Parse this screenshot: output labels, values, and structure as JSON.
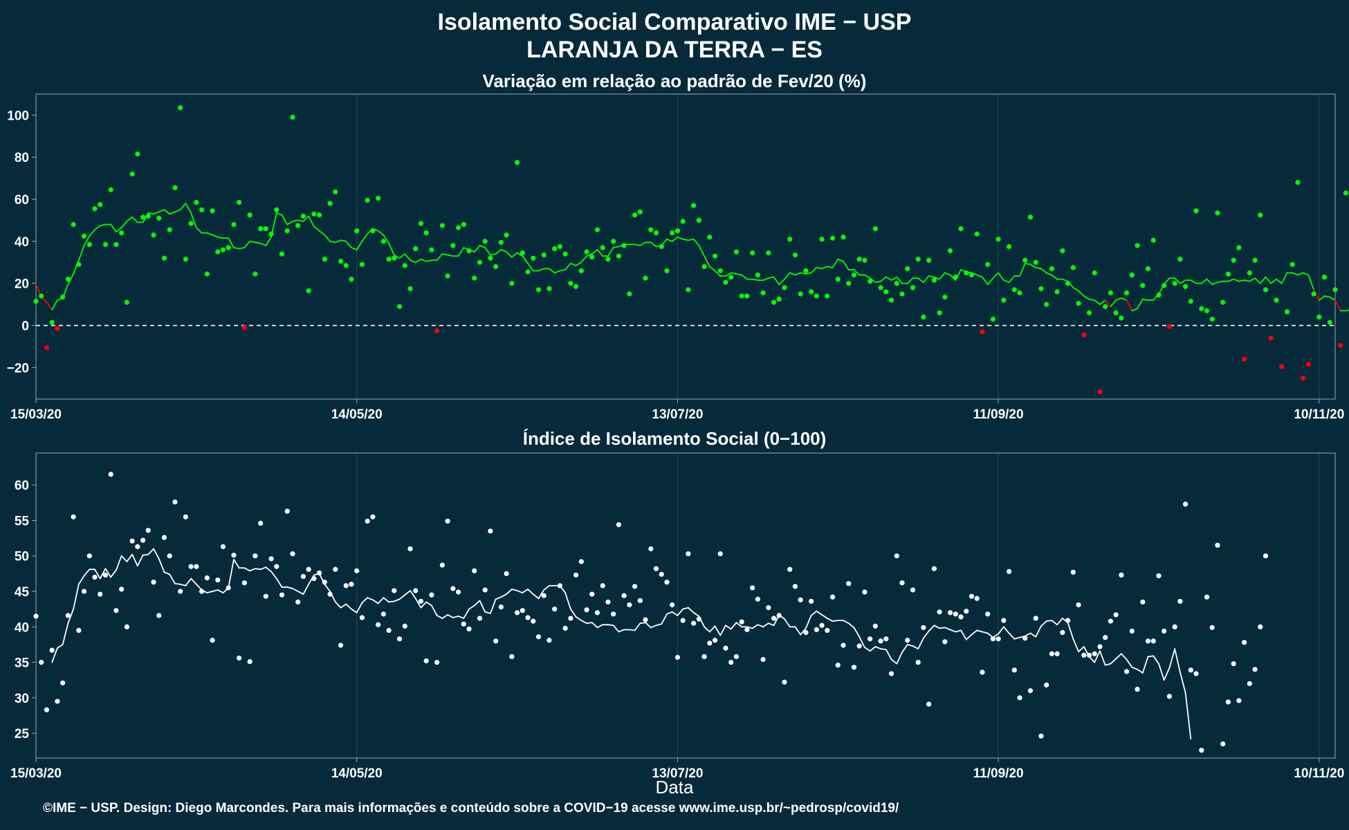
{
  "header": {
    "title_line1": "Isolamento Social Comparativo IME − USP",
    "title_line2": "LARANJA DA TERRA − ES"
  },
  "footer": {
    "xlabel": "Data",
    "credit": "©IME − USP. Design: Diego Marcondes. Para mais informações e conteúdo sobre a COVID−19 acesse www.ime.usp.br/~pedrosp/covid19/"
  },
  "colors": {
    "background": "#062a3a",
    "positive": "#00ff00",
    "negative": "#ff0000",
    "index": "#ffffff",
    "axis": "#9aa9b1"
  },
  "chart_data": [
    {
      "type": "scatter",
      "title": "Variação em relação ao padrão de Fev/20 (%)",
      "x_start": "15/03/20",
      "x_ticks": [
        "15/03/20",
        "14/05/20",
        "13/07/20",
        "11/09/20",
        "10/11/20"
      ],
      "x_tick_days": [
        0,
        60,
        120,
        180,
        240
      ],
      "x_range_days": [
        0,
        243
      ],
      "ylim": [
        -35,
        110
      ],
      "y_ticks": [
        -20,
        0,
        20,
        40,
        60,
        80,
        100
      ],
      "reference_line": 0,
      "series": [
        {
          "role": "daily points (green ≥ 0, red < 0)",
          "values": [
            11.5,
            14,
            -10.5,
            1.5,
            -1.5,
            13.5,
            22,
            48,
            29,
            42.5,
            38.5,
            55.5,
            57.5,
            38.5,
            64.5,
            38.5,
            44,
            11,
            72,
            81.5,
            51.5,
            52,
            43,
            51,
            32,
            45.5,
            65.5,
            103.5,
            31.5,
            48.5,
            58.5,
            55,
            24.5,
            54.5,
            35,
            36,
            37,
            48,
            58.5,
            -1,
            52.5,
            24.5,
            46,
            46,
            43.5,
            55,
            34,
            45,
            99,
            47.5,
            52,
            16.5,
            53,
            52.5,
            31.5,
            58,
            63.5,
            30.5,
            28.5,
            22,
            45,
            29,
            59.5,
            45,
            60.5,
            40,
            31.5,
            32,
            9,
            28.5,
            17.5,
            36.5,
            48.5,
            44,
            36,
            -2.5,
            47.5,
            23.5,
            38,
            46.5,
            48,
            35.5,
            22.5,
            30,
            40,
            32,
            28,
            39.5,
            43,
            20,
            77.5,
            34.5,
            25.5,
            32,
            17,
            33.5,
            17.5,
            36.5,
            37.5,
            34,
            20,
            18.5,
            26,
            35,
            32.5,
            45.5,
            37,
            31.5,
            40,
            33,
            38,
            15,
            52.5,
            54,
            22.5,
            45.5,
            44,
            37.5,
            26,
            44,
            45,
            49.5,
            17,
            57,
            50,
            28,
            42,
            33,
            26,
            20.5,
            23,
            35,
            14,
            14,
            34.5,
            24,
            15.5,
            34.5,
            11,
            12.5,
            18,
            41,
            33.5,
            15,
            26,
            16,
            14,
            41,
            14,
            41.5,
            22,
            42,
            20,
            24,
            31.5,
            31,
            21,
            46,
            18,
            16,
            12,
            20,
            15,
            27,
            18,
            31.5,
            4,
            31,
            21.5,
            6,
            13.5,
            35.5,
            23,
            46,
            25,
            24,
            43.5,
            -3,
            29,
            3,
            41,
            12,
            37.5,
            17,
            15.5,
            31,
            51.5,
            30,
            17.5,
            10,
            27,
            16,
            35.5,
            20,
            27.5,
            10.5,
            -4.5,
            6,
            25,
            -31.5,
            9,
            15.5,
            6,
            3.5,
            15.5,
            24,
            38,
            19,
            27,
            40.5,
            14.5,
            19,
            -0.5,
            20,
            31.5,
            18.5,
            11.5,
            54.5,
            8,
            7,
            3,
            53.5,
            11,
            24.5,
            31,
            37,
            -16,
            25,
            31,
            52.5,
            17,
            -6,
            12,
            -19.5,
            6.5,
            29,
            68,
            -25,
            -18.5,
            15,
            4,
            23,
            1.5,
            17,
            -9.5,
            63
          ]
        },
        {
          "role": "moving average",
          "start_day": 0,
          "values": [
            19.5,
            13.5,
            11,
            7.5,
            12,
            13,
            19.5,
            24.5,
            31,
            38,
            42.5,
            45.5,
            47.5,
            48,
            48,
            44.5,
            46.5,
            49.5,
            51.5,
            49,
            49,
            53.5,
            53,
            54,
            55,
            53,
            54,
            55,
            58,
            53.5,
            46.5,
            44,
            44,
            43,
            42,
            41.5,
            41.5,
            37,
            36.5,
            37,
            40,
            39.5,
            39,
            38,
            42,
            53.5,
            52.5,
            48,
            49.5,
            50,
            49.5,
            52,
            47,
            45,
            43,
            40,
            39.5,
            40.5,
            40,
            37,
            36,
            40,
            43.5,
            46,
            45,
            43,
            39,
            33.5,
            32,
            34,
            31,
            30,
            31.5,
            30.5,
            31,
            31,
            34,
            33.5,
            33,
            33,
            37,
            36,
            35,
            38,
            37,
            33.5,
            34,
            36,
            35,
            32.5,
            34.5,
            33,
            29.5,
            26,
            26,
            27,
            27,
            25,
            26,
            26.5,
            29.5,
            28.5,
            30,
            33,
            34,
            36,
            33,
            33,
            37,
            37.5,
            38.5,
            38.5,
            38.5,
            38,
            39.5,
            39.5,
            37.5,
            38,
            41,
            40,
            42,
            41,
            40.5,
            41,
            38,
            33,
            28,
            26,
            23.5,
            23.5,
            25,
            24.5,
            24,
            22,
            22,
            21.5,
            21.5,
            22.5,
            23,
            19.5,
            22,
            25,
            24,
            25,
            24.5,
            25,
            27.5,
            27,
            28,
            27.5,
            31.5,
            30.5,
            26.5,
            26.5,
            24,
            24,
            22.5,
            20.5,
            21,
            23,
            21.5,
            23,
            20,
            20,
            22.5,
            22.5,
            20.5,
            23.5,
            23,
            22,
            25,
            24,
            21.5,
            26.5,
            25.5,
            25,
            24,
            23,
            19.5,
            22.5,
            25,
            21.5,
            20.5,
            23.5,
            23.5,
            29.5,
            29,
            27.5,
            27,
            25,
            24,
            22,
            22,
            21,
            18,
            16.5,
            14,
            12.5,
            12,
            10,
            12,
            9,
            12,
            13,
            12,
            7,
            8,
            12.5,
            12,
            12,
            15,
            19.5,
            22.5,
            22.5,
            20,
            21.5,
            21.5,
            20,
            20,
            22,
            19.5,
            20.5,
            21,
            21,
            22,
            21,
            21.5,
            21,
            22.5,
            20,
            23,
            20,
            22,
            20,
            25,
            25,
            24,
            25,
            24,
            17,
            12,
            14,
            13.5,
            12,
            7,
            7,
            7.5,
            10.5,
            10,
            10,
            6,
            2.5,
            4,
            16.5
          ]
        }
      ]
    },
    {
      "type": "scatter",
      "title": "Índice de Isolamento Social (0−100)",
      "x_start": "15/03/20",
      "x_ticks": [
        "15/03/20",
        "14/05/20",
        "13/07/20",
        "11/09/20",
        "10/11/20"
      ],
      "x_tick_days": [
        0,
        60,
        120,
        180,
        240
      ],
      "x_range_days": [
        0,
        243
      ],
      "ylim": [
        21.5,
        64.5
      ],
      "y_ticks": [
        25,
        30,
        35,
        40,
        45,
        50,
        55,
        60
      ],
      "series": [
        {
          "role": "daily points",
          "values": [
            41.5,
            35,
            28.3,
            36.7,
            29.5,
            32.1,
            41.6,
            55.5,
            39.5,
            45,
            50,
            47,
            44.6,
            47.3,
            61.5,
            42.3,
            45.3,
            40,
            52.1,
            51.3,
            52.2,
            53.6,
            46.3,
            41.6,
            52.6,
            50,
            57.6,
            45,
            55.5,
            48.5,
            48.5,
            45,
            46.9,
            38.1,
            46.6,
            51.3,
            45.5,
            50.1,
            35.6,
            46.2,
            35.1,
            50,
            54.6,
            44.3,
            49.6,
            48.5,
            44.5,
            56.3,
            50.3,
            43.5,
            47.1,
            48.1,
            46.8,
            47.6,
            46.3,
            44.6,
            48.1,
            37.4,
            45.8,
            46,
            47.9,
            41.3,
            54.9,
            55.5,
            40.3,
            41.8,
            39.5,
            45.1,
            38.3,
            40.1,
            51,
            45.1,
            43.6,
            35.2,
            44.5,
            35,
            48.7,
            54.9,
            45.4,
            44.9,
            40.4,
            39.7,
            47.9,
            41.2,
            45.2,
            53.5,
            38,
            42.8,
            47.5,
            35.8,
            42,
            42.3,
            41.3,
            40.8,
            38.6,
            44.4,
            38.1,
            42.5,
            45.8,
            39.8,
            41.2,
            47.3,
            49.2,
            42.4,
            44.6,
            42,
            45.8,
            43.5,
            41.8,
            54.4,
            44.4,
            43.1,
            45.7,
            43.7,
            41,
            51,
            48.2,
            47.4,
            46.3,
            43.1,
            35.7,
            40.9,
            50.3,
            40.5,
            41.1,
            35.8,
            37.7,
            38.1,
            50.3,
            37,
            35,
            35.8,
            40.7,
            39.6,
            45.5,
            43.9,
            35.4,
            42.7,
            41.2,
            41.6,
            32.2,
            48.1,
            45.7,
            43.8,
            39.2,
            43.6,
            39.6,
            40.2,
            39.5,
            44.2,
            34.6,
            37.4,
            46.1,
            34.3,
            37.3,
            44.9,
            38.3,
            40.1,
            38,
            38.3,
            33.4,
            50,
            46.2,
            38.1,
            45.2,
            35,
            39.9,
            29.1,
            48.2,
            42.1,
            37.9,
            42,
            41.8,
            41.4,
            42.2,
            44.3,
            44,
            33.6,
            41.8,
            38.3,
            38.3,
            40.9,
            47.8,
            33.9,
            30,
            38.4,
            31,
            41.2,
            24.6,
            31.8,
            36.2,
            36.2,
            39.2,
            40.9,
            47.7,
            43.1,
            36,
            36,
            36.2,
            37.2,
            38.5,
            40.8,
            41.7,
            47.3,
            33.7,
            39.4,
            31.2,
            43.5,
            38,
            38,
            47.2,
            39.4,
            30.2,
            40,
            43.6,
            57.3,
            33.9,
            33.4,
            22.6,
            44.2,
            39.9,
            51.5,
            23.5,
            29.4,
            34.8,
            29.6,
            37.8,
            32,
            34,
            40,
            50
          ]
        },
        {
          "role": "moving average",
          "start_day": 3,
          "values": [
            35,
            37,
            37.5,
            40.5,
            42.5,
            46,
            47.2,
            48.1,
            48.1,
            46.8,
            48.2,
            47,
            48,
            50,
            49.2,
            50.2,
            48.6,
            50.1,
            50.2,
            51,
            49.6,
            47.7,
            47.4,
            46.1,
            46,
            45.8,
            46.8,
            46,
            45.2,
            44.8,
            45,
            45.2,
            44.8,
            45.5,
            49.5,
            48.3,
            48.3,
            47.9,
            48.2,
            48.1,
            48.4,
            47.8,
            46.8,
            45.6,
            45.6,
            45.4,
            45,
            44.6,
            46,
            47.3,
            47.5,
            46,
            45,
            43.5,
            42.7,
            43.2,
            42.5,
            42,
            43.4,
            44.1,
            43.8,
            43.3,
            44.1,
            43.5,
            43.6,
            43.9,
            44.5,
            45.1,
            44,
            42.7,
            43.5,
            43,
            41.6,
            41.2,
            41.7,
            41.3,
            41.5,
            41.2,
            42.5,
            43,
            43.7,
            42.1,
            41.9,
            43.9,
            44.2,
            44.6,
            45.3,
            45.1,
            44.8,
            45.3,
            44.6,
            44,
            45.2,
            45.8,
            45.8,
            45.8,
            44.8,
            42.5,
            41.4,
            40.9,
            40.5,
            40.6,
            39.9,
            40.3,
            40.3,
            40.2,
            39.3,
            39.6,
            39.6,
            39.5,
            40.5,
            40.6,
            39.9,
            40.2,
            40.4,
            41.8,
            42.1,
            41.6,
            42.5,
            42.7,
            42,
            41.5,
            40,
            39.3,
            40.1,
            38.8,
            40.2,
            39.7,
            40.6,
            40,
            40,
            39.8,
            40.3,
            40,
            40.5,
            40.2,
            41.7,
            41.1,
            40,
            40,
            38.9,
            39.8,
            41.6,
            42.2,
            41.7,
            41.2,
            40.8,
            40.9,
            40.9,
            40.5,
            39.9,
            38.6,
            37.1,
            36.6,
            37.2,
            36.9,
            36.8,
            35.4,
            34.8,
            36.4,
            37.5,
            37.3,
            36.9,
            38.4,
            39.4,
            40.2,
            39.8,
            39.9,
            39.6,
            39.3,
            39.5,
            38.2,
            38.9,
            39.5,
            39.3,
            39.1,
            38.5,
            39,
            40,
            39.1,
            38.3,
            38.5,
            38.7,
            39.1,
            38.6,
            40.1,
            40.8,
            40.9,
            40.3,
            41.2,
            40.6,
            38.3,
            36.5,
            37.2,
            35.8,
            35,
            36.6,
            34.6,
            34.8,
            35.5,
            36.2,
            35.4,
            34.3,
            34,
            33.5,
            35.8,
            35.9,
            34.8,
            32.5,
            34.2,
            36.9,
            33.6,
            30.7,
            24.2
          ]
        }
      ]
    }
  ]
}
